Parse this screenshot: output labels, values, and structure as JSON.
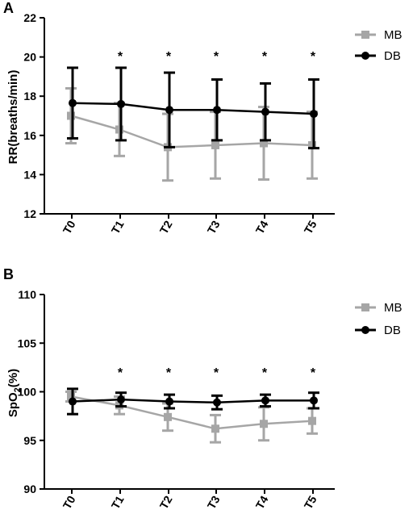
{
  "chart_data": [
    {
      "type": "line",
      "panel": "A",
      "ylabel": "RR(breaths/min)",
      "ylim": [
        12,
        22
      ],
      "yticks": [
        "12",
        "14",
        "16",
        "18",
        "20",
        "22"
      ],
      "categories": [
        "T0",
        "T1",
        "T2",
        "T3",
        "T4",
        "T5"
      ],
      "series": [
        {
          "name": "MB",
          "color": "#a6a6a6",
          "marker": "square",
          "values": [
            17.0,
            16.3,
            15.4,
            15.5,
            15.6,
            15.5
          ],
          "error": [
            1.4,
            1.35,
            1.7,
            1.7,
            1.85,
            1.7
          ]
        },
        {
          "name": "DB",
          "color": "#000000",
          "marker": "circle",
          "values": [
            17.65,
            17.6,
            17.3,
            17.3,
            17.2,
            17.1
          ],
          "error": [
            1.8,
            1.85,
            1.9,
            1.55,
            1.45,
            1.75
          ]
        }
      ],
      "annotations": [
        "",
        "*",
        "*",
        "*",
        "*",
        "*"
      ],
      "legend_position": "top-right"
    },
    {
      "type": "line",
      "panel": "B",
      "ylabel_main": "SpO",
      "ylabel_sub": "2",
      "ylabel_suffix": "(%)",
      "ylim": [
        90,
        110
      ],
      "yticks": [
        "90",
        "95",
        "100",
        "105",
        "110"
      ],
      "categories": [
        "T0",
        "T1",
        "T2",
        "T3",
        "T4",
        "T5"
      ],
      "series": [
        {
          "name": "MB",
          "color": "#a6a6a6",
          "marker": "square",
          "values": [
            99.5,
            98.6,
            97.4,
            96.2,
            96.7,
            97.0
          ],
          "error": [
            0.5,
            0.9,
            1.4,
            1.4,
            1.7,
            1.3
          ]
        },
        {
          "name": "DB",
          "color": "#000000",
          "marker": "circle",
          "values": [
            99.0,
            99.2,
            99.0,
            98.9,
            99.1,
            99.1
          ],
          "error": [
            1.3,
            0.7,
            0.7,
            0.7,
            0.6,
            0.8
          ]
        }
      ],
      "annotations": [
        "",
        "*",
        "*",
        "*",
        "*",
        "*"
      ],
      "legend_position": "top-right"
    }
  ]
}
